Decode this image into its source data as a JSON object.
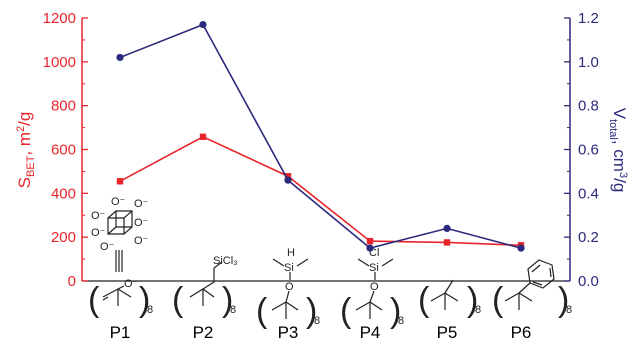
{
  "chart_data": {
    "type": "line",
    "categories": [
      "P1",
      "P2",
      "P3",
      "P4",
      "P5",
      "P6"
    ],
    "series": [
      {
        "axis": "left",
        "color": "#e8252b",
        "marker": "square",
        "values": [
          455,
          658,
          478,
          182,
          176,
          163
        ]
      },
      {
        "axis": "right",
        "color": "#2b2a7c",
        "marker": "circle",
        "values": [
          1.02,
          1.17,
          0.46,
          0.15,
          0.24,
          0.15
        ]
      }
    ],
    "ylabel_left": {
      "main": "S",
      "sub": "BET",
      "rest": ", m",
      "sup": "2",
      "end": "/g"
    },
    "ylabel_right": {
      "main": "V",
      "sub": "total",
      "rest": ", cm",
      "sup": "3",
      "end": "/g"
    },
    "ylim_left": [
      0,
      1200
    ],
    "ylim_right": [
      0,
      1.2
    ],
    "yticks_left": [
      0,
      200,
      400,
      600,
      800,
      1000,
      1200
    ],
    "yticks_right": [
      "0.0",
      "0.2",
      "0.4",
      "0.6",
      "0.8",
      "1.0",
      "1.2"
    ],
    "grid": false
  },
  "structures": {
    "repeat_label": "8",
    "p1_oxygen_labels": [
      "O⁻",
      "O⁻",
      "O⁻",
      "O⁻",
      "O⁻",
      "O⁻",
      "O⁻"
    ],
    "p1_link_o": "O⁻",
    "p2_group": "SiCl₃",
    "p3_h": "H",
    "p3_si": "Si",
    "p3_o": "O",
    "p4_cl": "Cl",
    "p4_si": "Si",
    "p4_o": "O"
  }
}
